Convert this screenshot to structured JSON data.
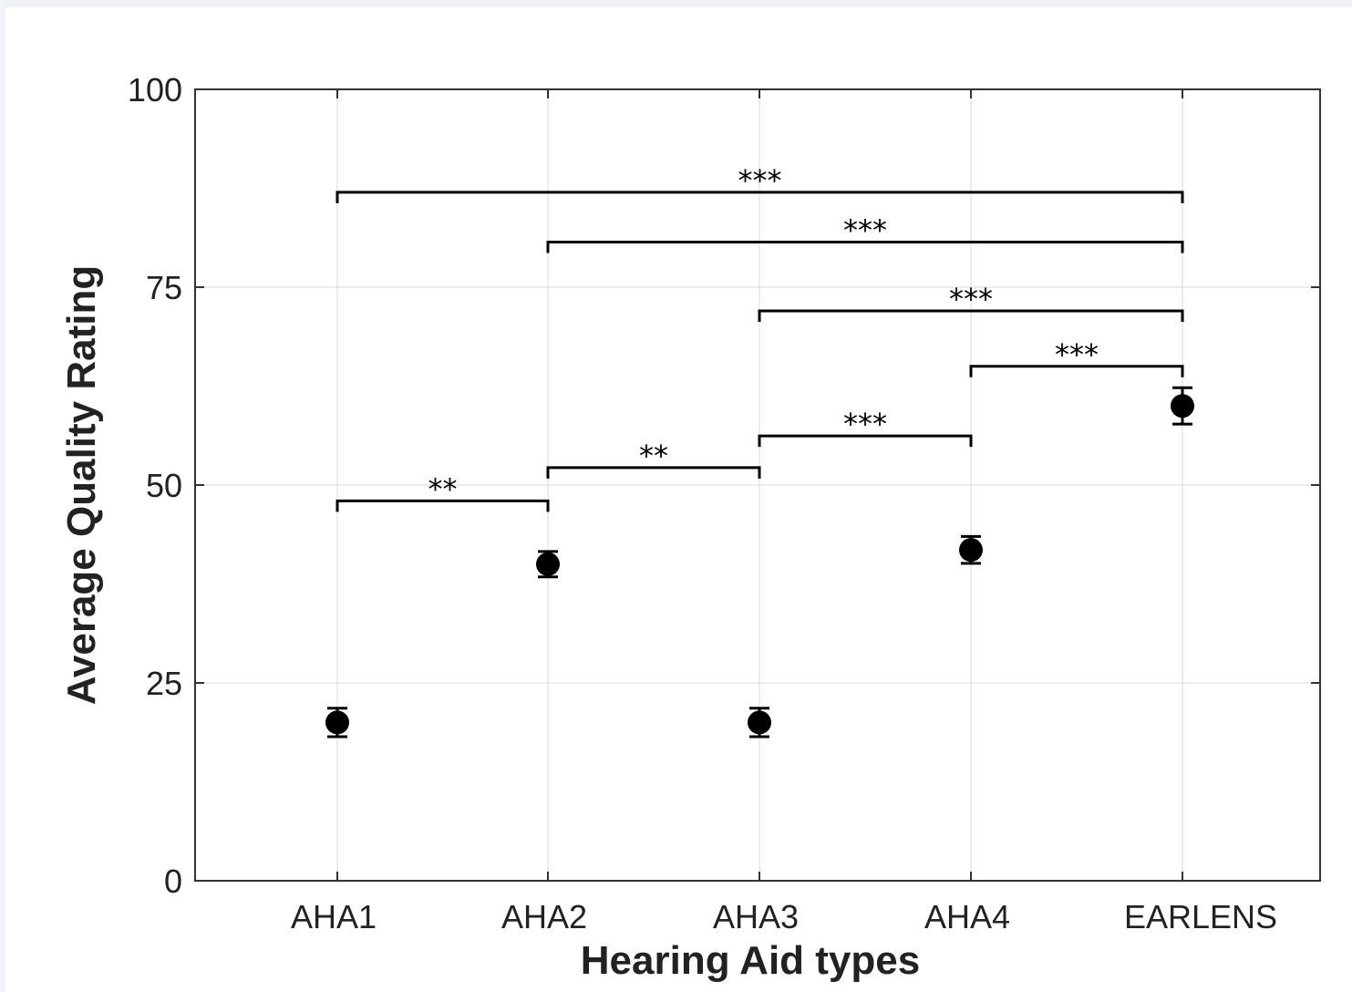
{
  "chart_data": {
    "type": "scatter",
    "xlabel": "Hearing Aid types",
    "ylabel": "Average Quality Rating",
    "ylim": [
      0,
      100
    ],
    "yticks": [
      0,
      25,
      50,
      75,
      100
    ],
    "grid": true,
    "categories": [
      "AHA1",
      "AHA2",
      "AHA3",
      "AHA4",
      "EARLENS"
    ],
    "series": [
      {
        "values": [
          20.0,
          40.0,
          20.0,
          41.8,
          60.0
        ],
        "error": [
          1.8,
          1.6,
          1.8,
          1.7,
          2.3
        ],
        "color": "#000000"
      }
    ],
    "significance": [
      {
        "from": "AHA1",
        "to": "EARLENS",
        "label": "***",
        "level": 87.0
      },
      {
        "from": "AHA2",
        "to": "EARLENS",
        "label": "***",
        "level": 80.7
      },
      {
        "from": "AHA3",
        "to": "EARLENS",
        "label": "***",
        "level": 72.0
      },
      {
        "from": "AHA4",
        "to": "EARLENS",
        "label": "***",
        "level": 65.0
      },
      {
        "from": "AHA1",
        "to": "AHA2",
        "label": "**",
        "level": 48.0
      },
      {
        "from": "AHA2",
        "to": "AHA3",
        "label": "**",
        "level": 52.2
      },
      {
        "from": "AHA3",
        "to": "AHA4",
        "label": "***",
        "level": 56.2
      }
    ]
  }
}
